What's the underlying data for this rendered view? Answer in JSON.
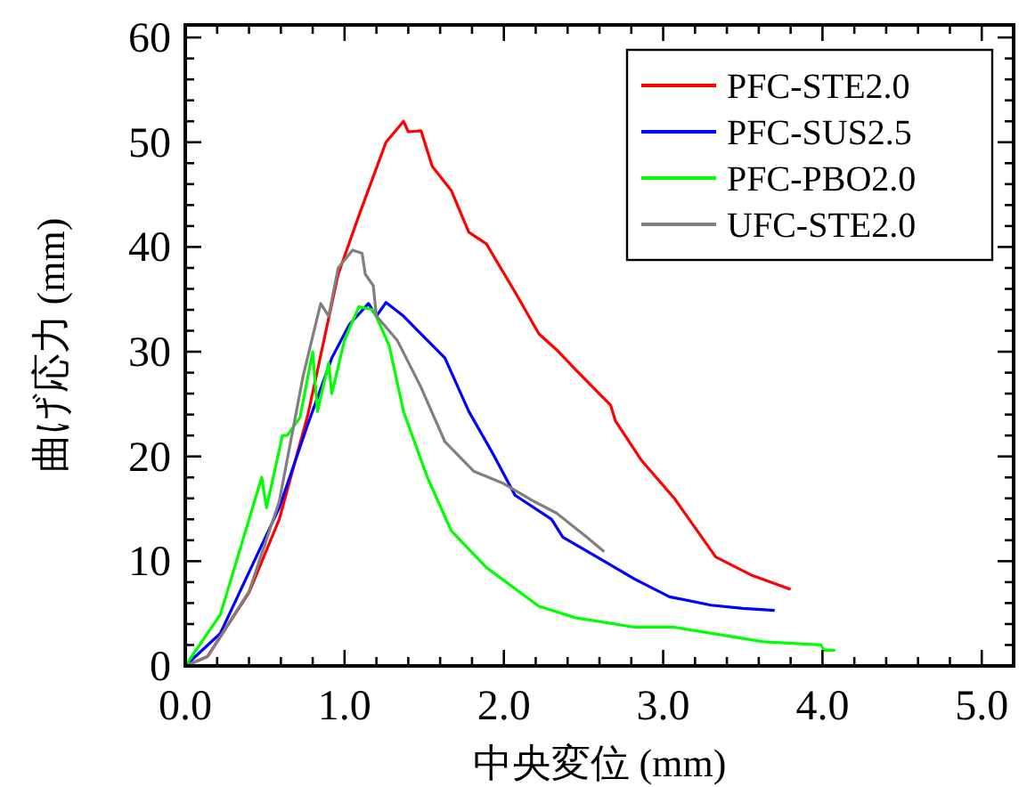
{
  "chart_data": {
    "type": "line",
    "xlabel": "中央変位 (mm)",
    "ylabel": "曲げ応力 (mm)",
    "xlim": [
      0,
      5.2
    ],
    "ylim": [
      0,
      61.2
    ],
    "xticks": [
      {
        "value": 0,
        "label": "0.0"
      },
      {
        "value": 0.2,
        "label": null
      },
      {
        "value": 0.4,
        "label": null
      },
      {
        "value": 0.6,
        "label": null
      },
      {
        "value": 0.8,
        "label": null
      },
      {
        "value": 1,
        "label": "1.0"
      },
      {
        "value": 1.2,
        "label": null
      },
      {
        "value": 1.4,
        "label": null
      },
      {
        "value": 1.6,
        "label": null
      },
      {
        "value": 1.8,
        "label": null
      },
      {
        "value": 2,
        "label": "2.0"
      },
      {
        "value": 2.2,
        "label": null
      },
      {
        "value": 2.4,
        "label": null
      },
      {
        "value": 2.6,
        "label": null
      },
      {
        "value": 2.8,
        "label": null
      },
      {
        "value": 3,
        "label": "3.0"
      },
      {
        "value": 3.2,
        "label": null
      },
      {
        "value": 3.4,
        "label": null
      },
      {
        "value": 3.6,
        "label": null
      },
      {
        "value": 3.8,
        "label": null
      },
      {
        "value": 4,
        "label": "4.0"
      },
      {
        "value": 4.2,
        "label": null
      },
      {
        "value": 4.4,
        "label": null
      },
      {
        "value": 4.6,
        "label": null
      },
      {
        "value": 4.8,
        "label": null
      },
      {
        "value": 5,
        "label": "5.0"
      }
    ],
    "yticks": [
      0,
      {
        "value": 2,
        "label": null
      },
      {
        "value": 4,
        "label": null
      },
      {
        "value": 6,
        "label": null
      },
      {
        "value": 8,
        "label": null
      },
      10,
      {
        "value": 12,
        "label": null
      },
      {
        "value": 14,
        "label": null
      },
      {
        "value": 16,
        "label": null
      },
      {
        "value": 18,
        "label": null
      },
      20,
      {
        "value": 22,
        "label": null
      },
      {
        "value": 24,
        "label": null
      },
      {
        "value": 26,
        "label": null
      },
      {
        "value": 28,
        "label": null
      },
      30,
      {
        "value": 32,
        "label": null
      },
      {
        "value": 34,
        "label": null
      },
      {
        "value": 36,
        "label": null
      },
      {
        "value": 38,
        "label": null
      },
      40,
      {
        "value": 42,
        "label": null
      },
      {
        "value": 44,
        "label": null
      },
      {
        "value": 46,
        "label": null
      },
      {
        "value": 48,
        "label": null
      },
      50,
      {
        "value": 52,
        "label": null
      },
      {
        "value": 54,
        "label": null
      },
      {
        "value": 56,
        "label": null
      },
      {
        "value": 58,
        "label": null
      },
      60
    ],
    "grid": false,
    "legend": "top right",
    "marker": "none",
    "line_style": "solid",
    "series": [
      {
        "name": "PFC-STE2.0",
        "color": "#ff0000",
        "x": [
          0,
          0.14,
          0.4,
          0.59,
          0.77,
          0.96,
          1.09,
          1.26,
          1.37,
          1.4,
          1.48,
          1.55,
          1.67,
          1.78,
          1.89,
          2.07,
          2.22,
          2.33,
          2.45,
          2.67,
          2.7,
          2.86,
          3.07,
          3.33,
          3.55,
          3.8
        ],
        "values": [
          0,
          0.9,
          7,
          14,
          24,
          37.4,
          43,
          50,
          52,
          51,
          51.1,
          47.7,
          45.4,
          41.4,
          40.3,
          35.7,
          31.7,
          30.2,
          28.3,
          24.9,
          23.4,
          19.7,
          16,
          10.4,
          8.7,
          7.3
        ]
      },
      {
        "name": "PFC-SUS2.5",
        "color": "#0000ff",
        "x": [
          0,
          0.22,
          0.59,
          0.77,
          0.92,
          1.03,
          1.15,
          1.2,
          1.26,
          1.37,
          1.48,
          1.63,
          1.78,
          1.93,
          2.07,
          2.3,
          2.37,
          2.63,
          2.82,
          3.04,
          3.3,
          3.5,
          3.7
        ],
        "values": [
          0,
          3.1,
          15.1,
          23.1,
          29.4,
          32.6,
          34.6,
          33.4,
          34.7,
          33.4,
          31.7,
          29.4,
          24.3,
          20.3,
          16.3,
          14,
          12.3,
          10,
          8.3,
          6.6,
          5.8,
          5.5,
          5.3
        ]
      },
      {
        "name": "PFC-PBO2.0",
        "color": "#00ff00",
        "x": [
          0,
          0.22,
          0.48,
          0.51,
          0.61,
          0.64,
          0.72,
          0.8,
          0.83,
          0.9,
          0.92,
          1,
          1.09,
          1.18,
          1.28,
          1.37,
          1.52,
          1.67,
          1.89,
          2.22,
          2.45,
          2.82,
          3.07,
          3.63,
          3.99,
          4.01,
          4.08
        ],
        "values": [
          0,
          4.9,
          18,
          15.1,
          22,
          22,
          23.7,
          30,
          24.3,
          28.9,
          26,
          31.1,
          34.3,
          34,
          30.6,
          24.3,
          18,
          12.9,
          9.4,
          5.7,
          4.6,
          3.7,
          3.7,
          2.3,
          2,
          1.5,
          1.5
        ]
      },
      {
        "name": "UFC-STE2.0",
        "color": "#808080",
        "x": [
          0,
          0.14,
          0.4,
          0.59,
          0.74,
          0.85,
          0.9,
          0.96,
          1.05,
          1.11,
          1.13,
          1.18,
          1.2,
          1.33,
          1.48,
          1.63,
          1.81,
          2,
          2.19,
          2.33,
          2.52,
          2.63
        ],
        "values": [
          0,
          0.9,
          7.1,
          15.7,
          27.7,
          34.6,
          33.4,
          38,
          39.7,
          39.4,
          37.4,
          36.3,
          33.4,
          31.1,
          26.6,
          21.4,
          18.6,
          17.4,
          15.7,
          14.6,
          12.3,
          10.9
        ]
      }
    ]
  }
}
